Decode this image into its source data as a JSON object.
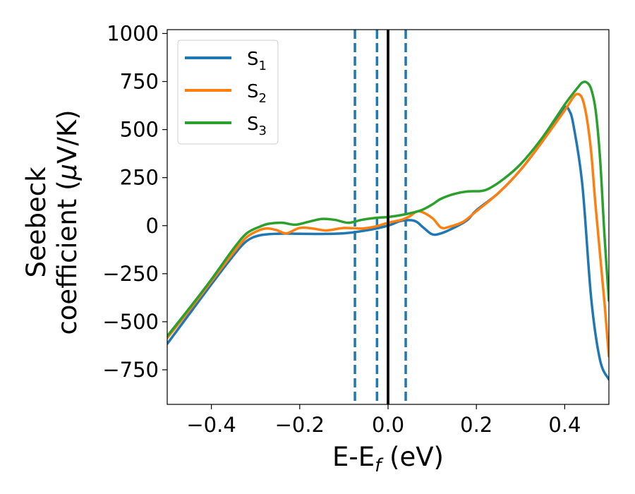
{
  "chart_data": {
    "type": "line",
    "title": "",
    "xlabel": {
      "main": "E-E",
      "sub": "f",
      "unit": " (eV)"
    },
    "ylabel": {
      "line1": "Seebeck",
      "line2_prefix": "coefficient  (",
      "line2_mu": "μ",
      "line2_suffix": "V/K)"
    },
    "xlim": [
      -0.5,
      0.5
    ],
    "ylim": [
      -930,
      1020
    ],
    "xticks": [
      -0.4,
      -0.2,
      0.0,
      0.2,
      0.4
    ],
    "xtick_labels": [
      "−0.4",
      "−0.2",
      "0.0",
      "0.2",
      "0.4"
    ],
    "yticks": [
      -750,
      -500,
      -250,
      0,
      250,
      500,
      750,
      1000
    ],
    "ytick_labels": [
      "−750",
      "−500",
      "−250",
      "0",
      "250",
      "500",
      "750",
      "1000"
    ],
    "grid": false,
    "legend_position": "upper-left",
    "series": [
      {
        "name": "S",
        "sub": "1",
        "color": "#1f77b4",
        "points": [
          [
            -0.5,
            -615
          ],
          [
            -0.45,
            -460
          ],
          [
            -0.4,
            -305
          ],
          [
            -0.35,
            -155
          ],
          [
            -0.32,
            -80
          ],
          [
            -0.29,
            -50
          ],
          [
            -0.25,
            -42
          ],
          [
            -0.2,
            -42
          ],
          [
            -0.15,
            -43
          ],
          [
            -0.1,
            -40
          ],
          [
            -0.05,
            -25
          ],
          [
            0,
            0
          ],
          [
            0.03,
            25
          ],
          [
            0.06,
            25
          ],
          [
            0.08,
            -10
          ],
          [
            0.1,
            -45
          ],
          [
            0.12,
            -40
          ],
          [
            0.15,
            -10
          ],
          [
            0.18,
            30
          ],
          [
            0.2,
            80
          ],
          [
            0.25,
            170
          ],
          [
            0.3,
            290
          ],
          [
            0.35,
            440
          ],
          [
            0.38,
            545
          ],
          [
            0.4,
            615
          ],
          [
            0.41,
            600
          ],
          [
            0.42,
            520
          ],
          [
            0.44,
            210
          ],
          [
            0.46,
            -380
          ],
          [
            0.48,
            -700
          ],
          [
            0.5,
            -800
          ]
        ]
      },
      {
        "name": "S",
        "sub": "2",
        "color": "#ff7f0e",
        "points": [
          [
            -0.5,
            -585
          ],
          [
            -0.45,
            -440
          ],
          [
            -0.4,
            -290
          ],
          [
            -0.35,
            -140
          ],
          [
            -0.32,
            -60
          ],
          [
            -0.29,
            -22
          ],
          [
            -0.27,
            -15
          ],
          [
            -0.25,
            -25
          ],
          [
            -0.23,
            -40
          ],
          [
            -0.2,
            -12
          ],
          [
            -0.17,
            -15
          ],
          [
            -0.14,
            -25
          ],
          [
            -0.1,
            -12
          ],
          [
            -0.06,
            -15
          ],
          [
            -0.03,
            -5
          ],
          [
            0,
            15
          ],
          [
            0.03,
            30
          ],
          [
            0.05,
            50
          ],
          [
            0.07,
            75
          ],
          [
            0.1,
            40
          ],
          [
            0.12,
            -10
          ],
          [
            0.14,
            -5
          ],
          [
            0.17,
            20
          ],
          [
            0.2,
            75
          ],
          [
            0.25,
            170
          ],
          [
            0.3,
            290
          ],
          [
            0.35,
            440
          ],
          [
            0.4,
            600
          ],
          [
            0.42,
            670
          ],
          [
            0.43,
            685
          ],
          [
            0.44,
            660
          ],
          [
            0.45,
            560
          ],
          [
            0.46,
            380
          ],
          [
            0.47,
            100
          ],
          [
            0.49,
            -400
          ],
          [
            0.5,
            -680
          ]
        ]
      },
      {
        "name": "S",
        "sub": "3",
        "color": "#2ca02c",
        "points": [
          [
            -0.5,
            -575
          ],
          [
            -0.45,
            -430
          ],
          [
            -0.4,
            -280
          ],
          [
            -0.35,
            -120
          ],
          [
            -0.32,
            -40
          ],
          [
            -0.29,
            -5
          ],
          [
            -0.27,
            10
          ],
          [
            -0.24,
            15
          ],
          [
            -0.21,
            5
          ],
          [
            -0.18,
            20
          ],
          [
            -0.15,
            35
          ],
          [
            -0.12,
            30
          ],
          [
            -0.09,
            15
          ],
          [
            -0.06,
            30
          ],
          [
            -0.03,
            40
          ],
          [
            0,
            45
          ],
          [
            0.03,
            55
          ],
          [
            0.06,
            70
          ],
          [
            0.08,
            85
          ],
          [
            0.1,
            110
          ],
          [
            0.12,
            140
          ],
          [
            0.15,
            165
          ],
          [
            0.18,
            178
          ],
          [
            0.21,
            180
          ],
          [
            0.23,
            195
          ],
          [
            0.26,
            240
          ],
          [
            0.3,
            320
          ],
          [
            0.35,
            460
          ],
          [
            0.4,
            630
          ],
          [
            0.43,
            720
          ],
          [
            0.44,
            745
          ],
          [
            0.45,
            745
          ],
          [
            0.46,
            710
          ],
          [
            0.47,
            600
          ],
          [
            0.48,
            350
          ],
          [
            0.49,
            -50
          ],
          [
            0.5,
            -390
          ]
        ]
      }
    ],
    "vlines": [
      {
        "x": -0.075,
        "style": "dashed",
        "color": "#1f77b4"
      },
      {
        "x": -0.025,
        "style": "dashed",
        "color": "#1f77b4"
      },
      {
        "x": 0.04,
        "style": "dashed",
        "color": "#1f77b4"
      },
      {
        "x": 0.0,
        "style": "solid",
        "color": "#000000"
      }
    ]
  }
}
